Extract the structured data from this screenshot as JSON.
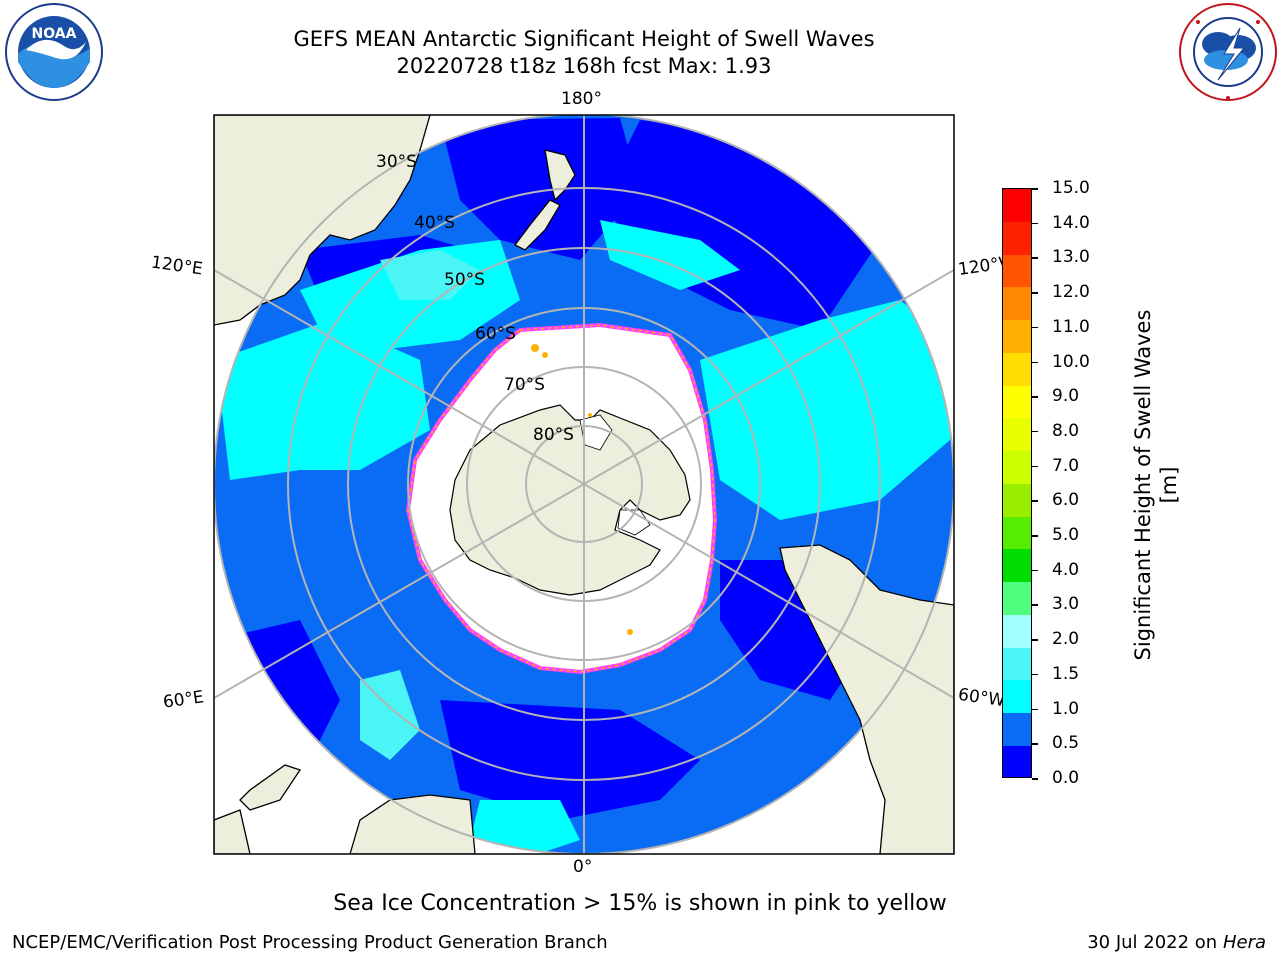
{
  "header": {
    "title_line1": "GEFS MEAN Antarctic Significant Height of Swell Waves",
    "title_line2": "20220728 t18z 168h fcst   Max: 1.93"
  },
  "map": {
    "projection": "south-polar-stereographic",
    "longitude_labels": {
      "top": "180°",
      "bottom": "0°",
      "upper_left": "120°E",
      "upper_right": "120°W",
      "lower_left": "60°E",
      "lower_right": "60°W"
    },
    "latitude_labels": [
      "30°S",
      "40°S",
      "50°S",
      "60°S",
      "70°S",
      "80°S"
    ],
    "ocean_classes": [
      {
        "range": "0.0–0.5",
        "color": "#0000ff"
      },
      {
        "range": "0.5–1.0",
        "color": "#0a6cf5"
      },
      {
        "range": "1.0–1.5",
        "color": "#00ffff"
      },
      {
        "range": "1.5–2.0",
        "color": "#4cf5f5"
      }
    ],
    "land_color": "#eeeedc",
    "sea_ice_color": "#ffffff",
    "ice_edge_colors": [
      "#ff40ff",
      "#ffb000",
      "#ffff00"
    ]
  },
  "colorbar": {
    "label": "Significant Height of Swell Waves [m]",
    "ticks": [
      "0.0",
      "0.5",
      "1.0",
      "1.5",
      "2.0",
      "3.0",
      "4.0",
      "5.0",
      "6.0",
      "7.0",
      "8.0",
      "9.0",
      "10.0",
      "11.0",
      "12.0",
      "13.0",
      "14.0",
      "15.0"
    ],
    "colors": [
      "#0000ff",
      "#0a6cf5",
      "#00ffff",
      "#4cf5f5",
      "#a0ffff",
      "#50ff80",
      "#00dd00",
      "#55ee00",
      "#99ee00",
      "#ccff00",
      "#e8ff00",
      "#ffff00",
      "#ffdd00",
      "#ffb000",
      "#ff8800",
      "#ff5500",
      "#ff2200",
      "#ff0000"
    ]
  },
  "footer": {
    "caption": "Sea Ice Concentration > 15% is shown in pink to yellow",
    "left": "NCEP/EMC/Verification Post Processing Product Generation Branch",
    "date": "30 Jul 2022 on ",
    "host": "Hera"
  }
}
